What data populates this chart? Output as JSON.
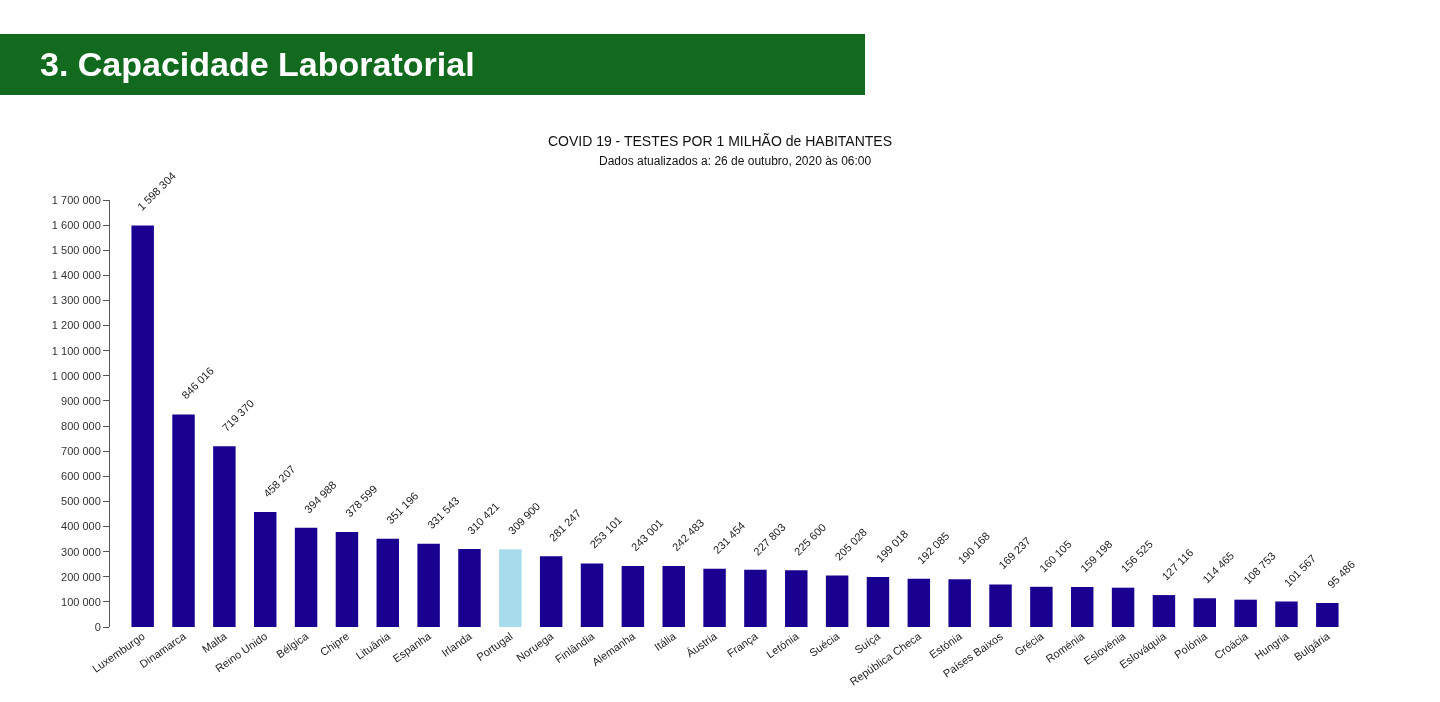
{
  "chart_data": {
    "type": "bar",
    "title": "3. Capacidade Laboratorial",
    "subtitle": "COVID 19 - TESTES POR 1 MILHÃO de HABITANTES",
    "annotations": [
      "Dados atualizados a: 26 de outubro, 2020 às 06:00"
    ],
    "categories": [
      "Luxemburgo",
      "Dinamarca",
      "Malta",
      "Reino Unido",
      "Bélgica",
      "Chipre",
      "Lituânia",
      "Espanha",
      "Irlanda",
      "Portugal",
      "Noruega",
      "Finlândia",
      "Alemanha",
      "Itália",
      "Áustria",
      "França",
      "Letónia",
      "Suécia",
      "Suíça",
      "República Checa",
      "Estónia",
      "Países Baixos",
      "Grécia",
      "Roménia",
      "Eslovénia",
      "Eslováquia",
      "Polónia",
      "Croácia",
      "Hungria",
      "Bulgária"
    ],
    "values": [
      1598304,
      846016,
      719370,
      458207,
      394988,
      378599,
      351196,
      331543,
      310421,
      309900,
      281247,
      253101,
      243001,
      242483,
      231454,
      227803,
      225600,
      205028,
      199018,
      192085,
      190168,
      169237,
      160105,
      159198,
      156525,
      127116,
      114465,
      108753,
      101567,
      95486
    ],
    "value_labels": [
      "1 598 304",
      "846 016",
      "719 370",
      "458 207",
      "394 988",
      "378 599",
      "351 196",
      "331 543",
      "310 421",
      "309 900",
      "281 247",
      "253 101",
      "243 001",
      "242 483",
      "231 454",
      "227 803",
      "225 600",
      "205 028",
      "199 018",
      "192 085",
      "190 168",
      "169 237",
      "160 105",
      "159 198",
      "156 525",
      "127 116",
      "114 465",
      "108 753",
      "101 567",
      "95 486"
    ],
    "colors": [
      "#1a0090",
      "#1a0090",
      "#1a0090",
      "#1a0090",
      "#1a0090",
      "#1a0090",
      "#1a0090",
      "#1a0090",
      "#1a0090",
      "#a8dcea",
      "#1a0090",
      "#1a0090",
      "#1a0090",
      "#1a0090",
      "#1a0090",
      "#1a0090",
      "#1a0090",
      "#1a0090",
      "#1a0090",
      "#1a0090",
      "#1a0090",
      "#1a0090",
      "#1a0090",
      "#1a0090",
      "#1a0090",
      "#1a0090",
      "#1a0090",
      "#1a0090",
      "#1a0090",
      "#1a0090"
    ],
    "ylim": [
      0,
      1700000
    ],
    "yticks": [
      {
        "value": 0,
        "label": "0"
      },
      {
        "value": 100000,
        "label": "100 000"
      },
      {
        "value": 200000,
        "label": "200 000"
      },
      {
        "value": 300000,
        "label": "300 000"
      },
      {
        "value": 400000,
        "label": "400 000"
      },
      {
        "value": 500000,
        "label": "500 000"
      },
      {
        "value": 600000,
        "label": "600 000"
      },
      {
        "value": 700000,
        "label": "700 000"
      },
      {
        "value": 800000,
        "label": "800 000"
      },
      {
        "value": 900000,
        "label": "900 000"
      },
      {
        "value": 1000000,
        "label": "1 000 000"
      },
      {
        "value": 1100000,
        "label": "1 100 000"
      },
      {
        "value": 1200000,
        "label": "1 200 000"
      },
      {
        "value": 1300000,
        "label": "1 300 000"
      },
      {
        "value": 1400000,
        "label": "1 400 000"
      },
      {
        "value": 1500000,
        "label": "1 500 000"
      },
      {
        "value": 1600000,
        "label": "1 600 000"
      },
      {
        "value": 1700000,
        "label": "1 700 000"
      }
    ],
    "grid": false
  }
}
